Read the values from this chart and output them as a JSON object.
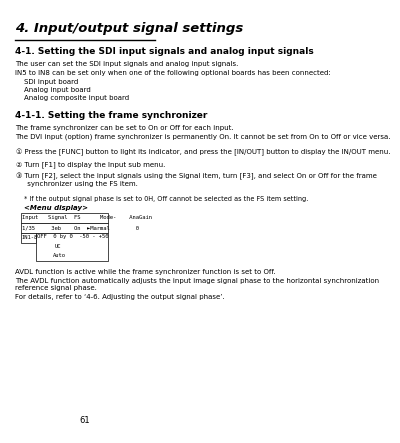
{
  "page_num": "61",
  "bg_color": "#ffffff",
  "title": "4. Input/output signal settings",
  "section_title": "4-1. Setting the SDI input signals and analog input signals",
  "section_body1": "The user can set the SDI input signals and analog input signals.",
  "section_body2": "IN5 to IN8 can be set only when one of the following optional boards has been connected:",
  "indent_items": [
    "SDI input board",
    "Analog input board",
    "Analog composite input board"
  ],
  "subsection_title": "4-1-1. Setting the frame synchronizer",
  "sub_body1": "The frame synchronizer can be set to On or Off for each input.",
  "sub_body2": "The DVI input (option) frame synchronizer is permanently On. It cannot be set from On to Off or vice versa.",
  "steps": [
    "① Press the [FUNC] button to light its indicator, and press the [IN/OUT] button to display the IN/OUT menu.",
    "② Turn [F1] to display the Input sub menu.",
    "③ Turn [F2], select the input signals using the Signal item, turn [F3], and select On or Off for the frame\n     synchronizer using the FS item."
  ],
  "note": "* If the output signal phase is set to 0H, Off cannot be selected as the FS item setting.",
  "menu_label": "<Menu display>",
  "avdl_text1": "AVDL function is active while the frame synchronizer function is set to Off.",
  "avdl_text2": "The AVDL function automatically adjusts the input image signal phase to the horizontal synchronization\nreference signal phase.",
  "avdl_text3": "For details, refer to ‘4-6. Adjusting the output signal phase’."
}
